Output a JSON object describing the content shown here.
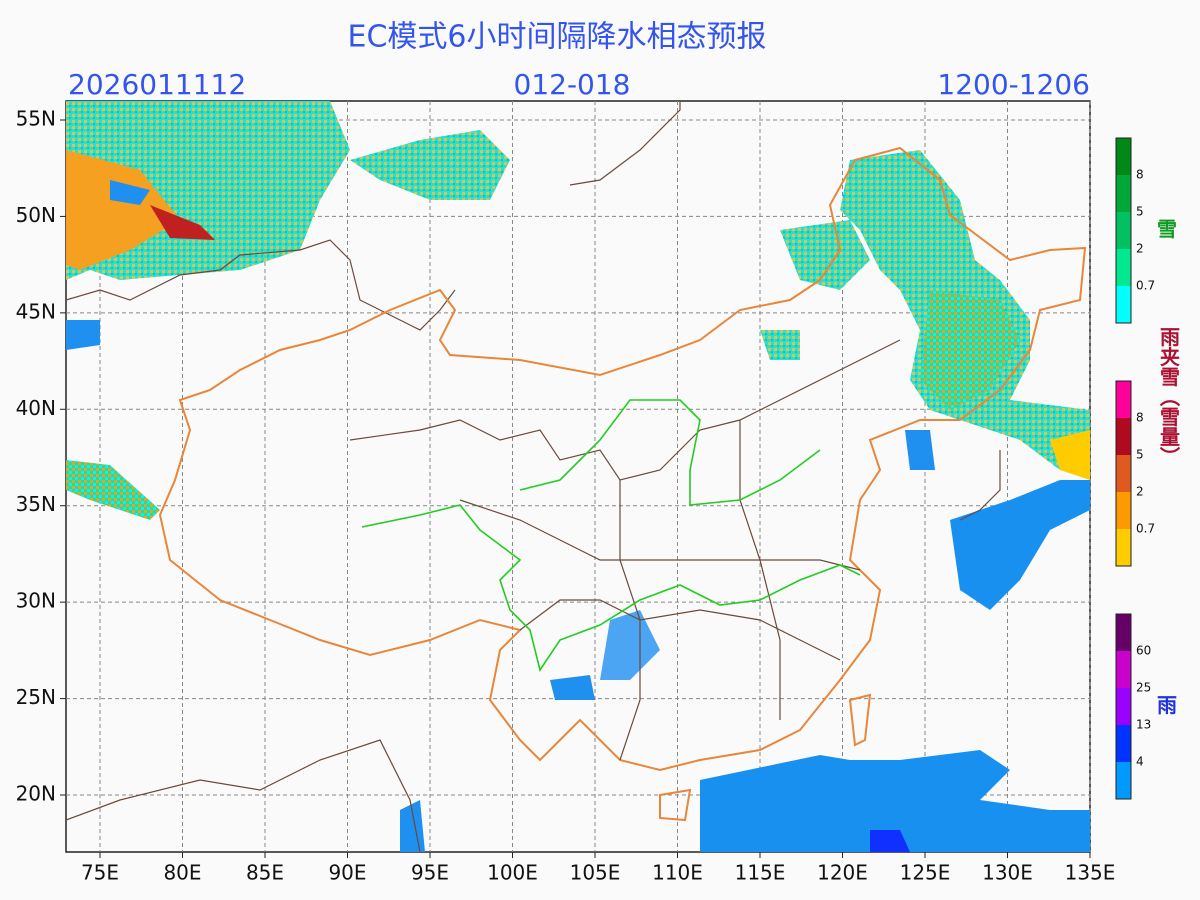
{
  "title": "EC模式6小时间隔降水相态预报",
  "init_time": "2026011112",
  "forecast_hours": "012-018",
  "valid_time": "1200-1206",
  "lat_labels": [
    "55N",
    "50N",
    "45N",
    "40N",
    "35N",
    "30N",
    "25N",
    "20N"
  ],
  "lon_labels": [
    "75E",
    "80E",
    "85E",
    "90E",
    "95E",
    "100E",
    "105E",
    "110E",
    "115E",
    "120E",
    "125E",
    "130E",
    "135E"
  ],
  "legends": [
    {
      "name": "雪",
      "color": "#119922",
      "ticks": [
        "0.7",
        "2",
        "5",
        "8"
      ],
      "colors": [
        "#00ffff",
        "#00e890",
        "#00c060",
        "#00a838",
        "#008818"
      ]
    },
    {
      "name": "雨夹雪（雪量）",
      "color": "#aa1133",
      "ticks": [
        "0.7",
        "2",
        "5",
        "8"
      ],
      "colors": [
        "#ffcc00",
        "#ff9900",
        "#e05a20",
        "#b00a20",
        "#ff0099"
      ]
    },
    {
      "name": "雨",
      "color": "#2233dd",
      "ticks": [
        "4",
        "13",
        "25",
        "60"
      ],
      "colors": [
        "#0099ff",
        "#0033ff",
        "#9900ff",
        "#cc00cc",
        "#660066"
      ]
    }
  ]
}
